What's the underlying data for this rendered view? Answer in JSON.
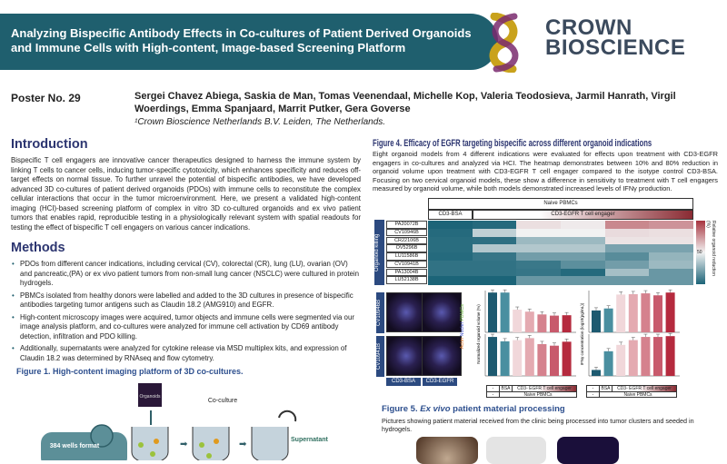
{
  "header": {
    "title": "Analyzing Bispecific Antibody Effects in Co-cultures of Patient Derived Organoids and Immune Cells with High-content, Image-based Screening Platform",
    "logo_line1": "CROWN",
    "logo_line2": "BIOSCIENCE",
    "banner_color": "#1f5f6e"
  },
  "poster": {
    "number": "Poster No. 29",
    "authors": "Sergei Chavez Abiega, Saskia de Man, Tomas Veenendaal, Michelle Kop, Valeria Teodosieva, Jarmil Hanrath, Virgil Woerdings, Emma Spanjaard, Marrit Putker, Gera Goverse",
    "affiliation": "¹Crown Bioscience Netherlands B.V. Leiden, The Netherlands."
  },
  "introduction": {
    "heading": "Introduction",
    "text": "Bispecific T cell engagers are innovative cancer therapeutics designed to harness the immune system by linking T cells to cancer cells, inducing tumor-specific cytotoxicity, which enhances specificity and reduces off-target effects on normal tissue. To further unravel the potential of bispecific antibodies, we have developed advanced 3D co-cultures of patient derived organoids (PDOs) with immune cells to reconstitute the complex cellular interactions that occur in the tumor microenvironment. Here, we present a validated high-content imaging (HCI)-based screening platform of complex in vitro 3D co-cultured organoids and ex vivo patient tumors that enables rapid, reproducible testing in a physiologically relevant system with spatial readouts for testing the effect of bispecific T cell engagers on various cancer indications."
  },
  "methods": {
    "heading": "Methods",
    "bullets": [
      "PDOs from different cancer indications, including cervical (CV), colorectal (CR), lung (LU), ovarian (OV) and pancreatic,(PA) or ex vivo patient tumors from non-small lung cancer (NSCLC) were cultured in protein hydrogels.",
      "PBMCs isolated from healthy donors were labelled and added to the 3D cultures in presence of bispecific antibodies targeting tumor antigens such as Claudin 18.2 (AMG910) and EGFR.",
      "High-content microscopy images were acquired, tumor objects and immune cells were segmented via our image analysis platform, and co-cultures were analyzed for immune cell activation by CD69 antibody detection, infiltration and PDO killing.",
      "Additionally, supernatants were analyzed for cytokine release via MSD multiplex kits, and expression of Claudin 18.2 was determined by RNAseq and flow cytometry."
    ]
  },
  "figure1": {
    "caption": "Figure 1. High-content imaging platform of 3D co-cultures.",
    "plate_label": "384 wells format",
    "organoids_label": "Organoids",
    "coculture_label": "Co-culture",
    "supernatant_label": "Supernatant"
  },
  "figure4": {
    "title": "Figure 4. Efficacy of EGFR targeting bispecific across different organoid indications",
    "caption": "Eight organoid models from 4 different indications were evaluated for effects upon treatment with CD3-EGFR engagers in co-cultures and analyzed via HCI. The heatmap demonstrates between 10% and 80% reduction in organoid volume upon treatment with CD3-EGFR T cell engager compared to the isotype control CD3-BSA. Focusing on two cervical organoid models, these show a difference in sensitivity to treatment with T cell engagers measured by organoid volume, while both models demonstrated increased levels of IFNγ production.",
    "naive_pbmcs": "Naive PBMCs",
    "cd3_bsa": "CD3-BSA",
    "cd3_egfr_engager": "CD3-EGFR T cell engager",
    "side_label": "Organoid killing",
    "colorbar_label": "Relative organoid reduction (%)",
    "colorbar_tick": "50",
    "colors": {
      "low": "#1c6478",
      "mid": "#f2f2f2",
      "high": "#a8343f"
    },
    "image_rows": [
      "CV10946B",
      "CV10941B"
    ],
    "image_cols": [
      "CD3-BSA",
      "CD3-EGFR"
    ],
    "stain_label": [
      "Actin",
      "Nuclei",
      "PBMCs"
    ],
    "table": {
      "row1": [
        "-",
        "BSA",
        "CD3- EGFR T cell engager"
      ],
      "row2": [
        "-",
        "Naive PBMCs"
      ]
    }
  },
  "chart_data": [
    {
      "type": "heatmap",
      "rows": [
        "PA20072B",
        "CV10946B",
        "CR22106B",
        "OV5296B",
        "LU11586B",
        "CV10941B",
        "PA13004B",
        "LU52138B"
      ],
      "columns": [
        "CD3-BSA",
        "CD3-EGFR 1",
        "CD3-EGFR 2",
        "CD3-EGFR 3",
        "CD3-EGFR 4",
        "CD3-EGFR 5"
      ],
      "values": [
        [
          0,
          2,
          55,
          52,
          78,
          75
        ],
        [
          2,
          38,
          50,
          50,
          56,
          55
        ],
        [
          3,
          4,
          30,
          30,
          54,
          54
        ],
        [
          3,
          35,
          35,
          35,
          22,
          22
        ],
        [
          2,
          6,
          20,
          20,
          14,
          28
        ],
        [
          5,
          5,
          7,
          15,
          20,
          30
        ],
        [
          5,
          5,
          6,
          2,
          32,
          18
        ],
        [
          0,
          0,
          18,
          18,
          18,
          18
        ]
      ],
      "colorbar_label": "Relative organoid reduction (%)",
      "range": [
        0,
        100
      ]
    },
    {
      "type": "bar",
      "ylabel": "Normalized organoid volume (%)",
      "panels": [
        {
          "model": "CV10946B",
          "values": [
            100,
            100,
            57,
            52,
            45,
            42,
            43
          ]
        },
        {
          "model": "CV10941B",
          "values": [
            98,
            87,
            90,
            95,
            80,
            76,
            86
          ]
        }
      ]
    },
    {
      "type": "bar",
      "ylabel": "IFNγ concentration (log10(pg/mL))",
      "panels": [
        {
          "model": "CV10946B",
          "values": [
            55,
            60,
            95,
            96,
            98,
            93,
            100
          ]
        },
        {
          "model": "CV10941B",
          "values": [
            15,
            62,
            78,
            90,
            98,
            98,
            100
          ]
        }
      ]
    }
  ],
  "bar_colors": [
    "#1d5a70",
    "#4a8fa0",
    "#f1d7da",
    "#e4aab1",
    "#d5818d",
    "#c85a6c",
    "#b52a3e"
  ],
  "figure5": {
    "title_prefix": "Figure 5. ",
    "title_em": "Ex vivo",
    "title_suffix": " patient material processing",
    "caption": "Pictures showing patient material received from the clinic being processed into tumor clusters and seeded in hydrogels."
  }
}
